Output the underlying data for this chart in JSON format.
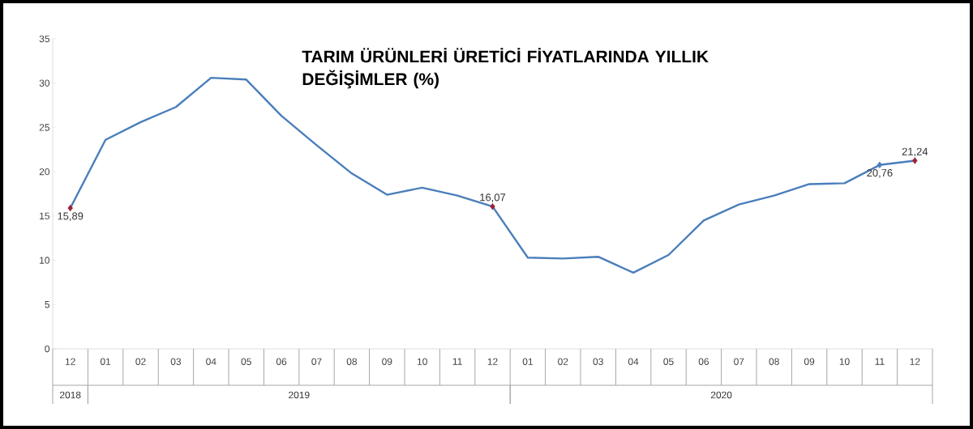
{
  "chart_data": {
    "type": "line",
    "title": "TARIM ÜRÜNLERİ ÜRETİCİ FİYATLARINDA YILLIK DEĞİŞİMLER (%)",
    "categories": [
      "12",
      "01",
      "02",
      "03",
      "04",
      "05",
      "06",
      "07",
      "08",
      "09",
      "10",
      "11",
      "12",
      "01",
      "02",
      "03",
      "04",
      "05",
      "06",
      "07",
      "08",
      "09",
      "10",
      "11",
      "12"
    ],
    "series": [
      {
        "color": "#4a7ebb",
        "values": [
          15.89,
          23.6,
          25.6,
          27.3,
          30.6,
          30.4,
          26.3,
          23.0,
          19.8,
          17.4,
          18.2,
          17.3,
          16.07,
          10.3,
          10.2,
          10.4,
          8.6,
          10.6,
          14.5,
          16.3,
          17.3,
          18.6,
          18.7,
          20.76,
          21.24
        ],
        "value_labels": [
          "15,89",
          null,
          null,
          null,
          null,
          null,
          null,
          null,
          null,
          null,
          null,
          null,
          "16,07",
          null,
          null,
          null,
          null,
          null,
          null,
          null,
          null,
          null,
          null,
          "20,76",
          "21,24"
        ],
        "colors": [
          "#9b2335",
          "#4a7ebb",
          "#4a7ebb",
          "#4a7ebb",
          "#4a7ebb",
          "#4a7ebb",
          "#4a7ebb",
          "#4a7ebb",
          "#4a7ebb",
          "#4a7ebb",
          "#4a7ebb",
          "#4a7ebb",
          "#9b2335",
          "#4a7ebb",
          "#4a7ebb",
          "#4a7ebb",
          "#4a7ebb",
          "#4a7ebb",
          "#4a7ebb",
          "#4a7ebb",
          "#4a7ebb",
          "#4a7ebb",
          "#4a7ebb",
          "#4a7ebb",
          "#9b2335"
        ]
      }
    ],
    "ylim": [
      0,
      35
    ],
    "yticks": [
      0,
      5,
      10,
      15,
      20,
      25,
      30,
      35
    ],
    "annotations": [
      "2018",
      "2019",
      "2020"
    ]
  }
}
